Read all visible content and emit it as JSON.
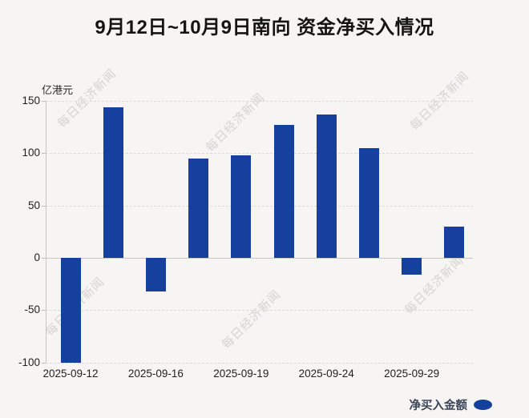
{
  "title": "9月12日~10月9日南向 资金净买入情况",
  "colors": {
    "bar": "#16409e",
    "background": "#f7f5f3",
    "title_text": "#141414",
    "grid": "#dcdad7",
    "zero_line": "#c8c6c3",
    "tick_text": "#1f1f1f",
    "legend_text": "#3a4458",
    "watermark_text": "#b0a8a2"
  },
  "y_axis": {
    "unit": "亿港元",
    "ticks": [
      150,
      100,
      50,
      0,
      -50,
      -100
    ],
    "min": -100,
    "max": 150
  },
  "x_axis": {
    "tick_labels": [
      "2025-09-12",
      "2025-09-16",
      "2025-09-19",
      "2025-09-24",
      "2025-09-29"
    ],
    "tick_bar_indexes": [
      0,
      2,
      4,
      6,
      8
    ]
  },
  "legend": {
    "label": "净买入金额"
  },
  "watermark": {
    "text": "每日经济新闻"
  },
  "chart_data": {
    "type": "bar",
    "title": "9月12日~10月9日南向 资金净买入情况",
    "ylabel": "亿港元",
    "ylim": [
      -100,
      150
    ],
    "grid": true,
    "legend_position": "bottom-right",
    "series": [
      {
        "name": "净买入金额",
        "values": [
          -100,
          144,
          -32,
          95,
          98,
          127,
          137,
          105,
          -16,
          30
        ]
      }
    ],
    "x_tick_labels": [
      "2025-09-12",
      "2025-09-16",
      "2025-09-19",
      "2025-09-24",
      "2025-09-29"
    ],
    "x_tick_positions": [
      0,
      2,
      4,
      6,
      8
    ],
    "bar_color": "#16409e"
  }
}
